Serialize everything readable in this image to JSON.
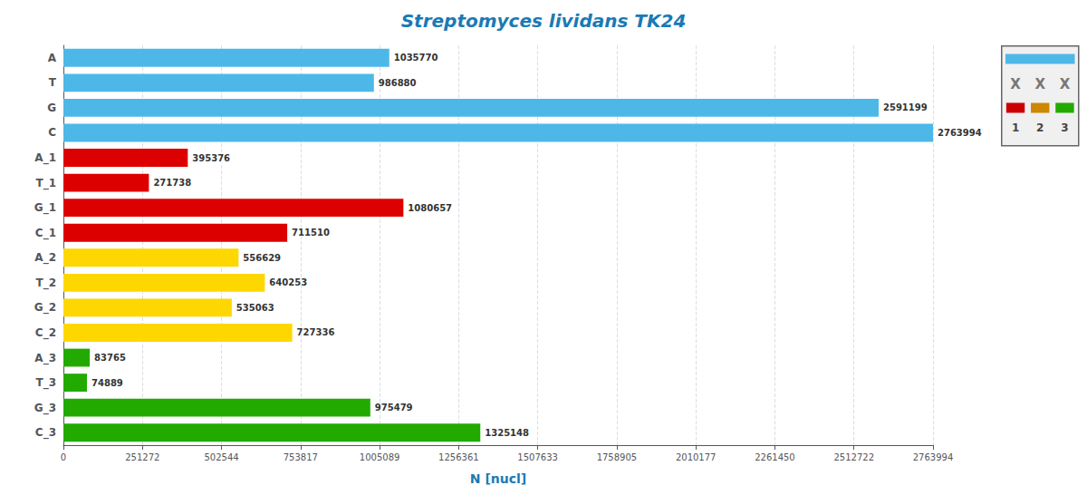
{
  "chart_data": {
    "type": "bar",
    "orientation": "horizontal",
    "title": "Streptomyces lividans TK24",
    "xlabel": "N [nucl]",
    "categories": [
      "A",
      "T",
      "G",
      "C",
      "A_1",
      "T_1",
      "G_1",
      "C_1",
      "A_2",
      "T_2",
      "G_2",
      "C_2",
      "A_3",
      "T_3",
      "G_3",
      "C_3"
    ],
    "values": [
      1035770,
      986880,
      2591199,
      2763994,
      395376,
      271738,
      1080657,
      711510,
      556629,
      640253,
      535063,
      727336,
      83765,
      74889,
      975479,
      1325148
    ],
    "colors": [
      "#4db8e8",
      "#4db8e8",
      "#4db8e8",
      "#4db8e8",
      "#dd0000",
      "#dd0000",
      "#dd0000",
      "#dd0000",
      "#ffd700",
      "#ffd700",
      "#ffd700",
      "#ffd700",
      "#22aa00",
      "#22aa00",
      "#22aa00",
      "#22aa00"
    ],
    "xlim": [
      0,
      2763994
    ],
    "xticks": [
      0,
      251272,
      502544,
      753817,
      1005089,
      1256361,
      1507633,
      1758905,
      2010177,
      2261450,
      2512722,
      2763994
    ],
    "grid": true,
    "data_labels": true,
    "annotations": [
      "X",
      "X",
      "X",
      "1",
      "2",
      "3"
    ]
  }
}
